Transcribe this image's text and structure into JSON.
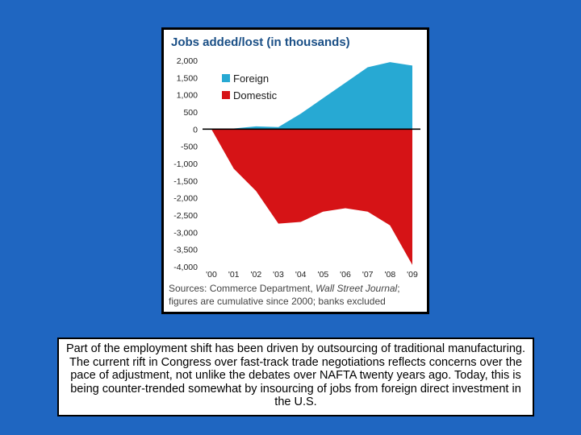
{
  "chart_data": {
    "type": "area",
    "title": "Jobs added/lost (in thousands)",
    "x": [
      "'00",
      "'01",
      "'02",
      "'03",
      "'04",
      "'05",
      "'06",
      "'07",
      "'08",
      "'09"
    ],
    "ylim": [
      -4000,
      2000
    ],
    "yticks": [
      "2,000",
      "1,500",
      "1,000",
      "500",
      "0",
      "-500",
      "-1,000",
      "-1,500",
      "-2,000",
      "-2,500",
      "-3,000",
      "-3,500",
      "-4,000"
    ],
    "ytick_values": [
      2000,
      1500,
      1000,
      500,
      0,
      -500,
      -1000,
      -1500,
      -2000,
      -2500,
      -3000,
      -3500,
      -4000
    ],
    "series": [
      {
        "name": "Foreign",
        "color": "#27a9d3",
        "points": [
          [
            0,
            0
          ],
          [
            1,
            20
          ],
          [
            2,
            80
          ],
          [
            3,
            60
          ],
          [
            4,
            450
          ],
          [
            5,
            900
          ],
          [
            6,
            1350
          ],
          [
            7,
            1800
          ],
          [
            8,
            1950
          ],
          [
            9,
            1850
          ]
        ]
      },
      {
        "name": "Domestic",
        "color": "#d61316",
        "points": [
          [
            0,
            0
          ],
          [
            1,
            -1150
          ],
          [
            2,
            -1800
          ],
          [
            3,
            -2750
          ],
          [
            4,
            -2700
          ],
          [
            5,
            -2400
          ],
          [
            6,
            -2300
          ],
          [
            7,
            -2400
          ],
          [
            8,
            -2800
          ],
          [
            9,
            -3950
          ]
        ]
      }
    ],
    "legend_position": "upper-left",
    "grid": false,
    "source": "Sources: Commerce Department, Wall Street Journal; figures are cumulative since 2000; banks excluded",
    "source_lines": [
      "Sources: Commerce Department, ",
      "Wall Street Journal",
      ";",
      "figures are cumulative since 2000; banks excluded"
    ]
  },
  "caption": {
    "text": "Part of the employment shift has been driven by outsourcing of traditional manufacturing.  The current rift in Congress over fast-track trade negotiations reflects concerns over the pace of adjustment, not unlike the debates over NAFTA twenty years ago. Today, this is being counter-trended somewhat by insourcing of jobs from foreign direct investment in the U.S."
  }
}
